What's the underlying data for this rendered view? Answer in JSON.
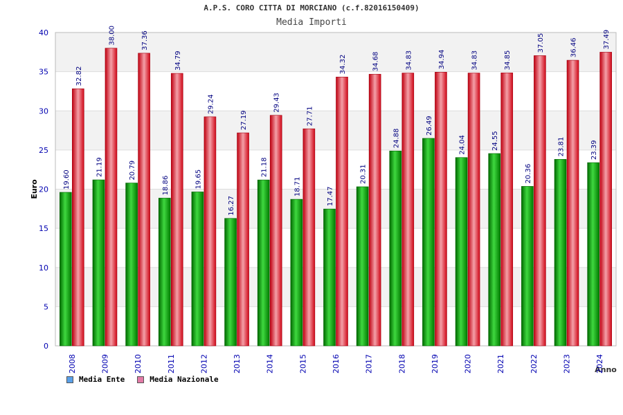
{
  "header": {
    "title": "A.P.S. CORO CITTA DI MORCIANO (c.f.82016150409)",
    "subtitle": "Media Importi"
  },
  "legend": {
    "items": [
      {
        "label": "Media Ente",
        "color": "#5aa0e8"
      },
      {
        "label": "Media Nazionale",
        "color": "#e27aa6"
      }
    ]
  },
  "colors": {
    "ente_bar": "#10a010",
    "nazionale_bar": "#e01828",
    "axis_tick_text": "#0000b0",
    "plot_band": "#f2f2f2"
  },
  "chart_data": {
    "type": "bar",
    "title": "A.P.S. CORO CITTA DI MORCIANO (c.f.82016150409)",
    "subtitle": "Media Importi",
    "xlabel": "Anno",
    "ylabel": "Euro",
    "ylim": [
      0,
      40
    ],
    "yticks": [
      0,
      5,
      10,
      15,
      20,
      25,
      30,
      35,
      40
    ],
    "grid": true,
    "legend_position": "bottom-left",
    "categories": [
      "2008",
      "2009",
      "2010",
      "2011",
      "2012",
      "2013",
      "2014",
      "2015",
      "2016",
      "2017",
      "2018",
      "2019",
      "2020",
      "2021",
      "2022",
      "2023",
      "2024"
    ],
    "series": [
      {
        "name": "Media Ente",
        "values": [
          19.6,
          21.19,
          20.79,
          18.86,
          19.65,
          16.27,
          21.18,
          18.71,
          17.47,
          20.31,
          24.88,
          26.49,
          24.04,
          24.55,
          20.36,
          23.81,
          23.39
        ],
        "labels": [
          "19.60",
          "21.19",
          "20.79",
          "18.86",
          "19.65",
          "16.27",
          "21.18",
          "18.71",
          "17.47",
          "20.31",
          "24.88",
          "26.49",
          "24.04",
          "24.55",
          "20.36",
          "23.81",
          "23.39"
        ]
      },
      {
        "name": "Media Nazionale",
        "values": [
          32.82,
          38.0,
          37.36,
          34.79,
          29.24,
          27.19,
          29.43,
          27.71,
          34.32,
          34.68,
          34.83,
          34.94,
          34.83,
          34.85,
          37.05,
          36.46,
          37.49
        ],
        "labels": [
          "32.82",
          "38.00",
          "37.36",
          "34.79",
          "29.24",
          "27.19",
          "29.43",
          "27.71",
          "34.32",
          "34.68",
          "34.83",
          "34.94",
          "34.83",
          "34.85",
          "37.05",
          "36.46",
          "37.49"
        ]
      }
    ]
  }
}
